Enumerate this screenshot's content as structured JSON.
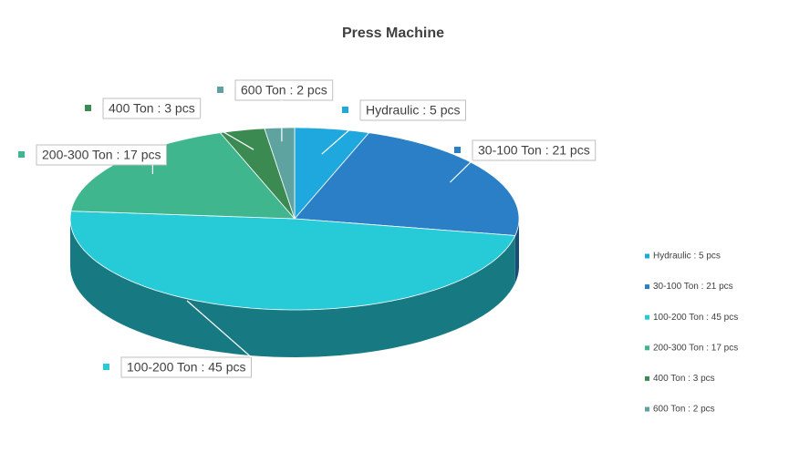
{
  "chart_data": {
    "type": "pie",
    "title": "Press Machine",
    "categories": [
      "Hydraulic : 5 pcs",
      "30-100 Ton : 21 pcs",
      "100-200 Ton : 45 pcs",
      "200-300 Ton : 17 pcs",
      "400 Ton : 3 pcs",
      "600 Ton : 2 pcs"
    ],
    "values": [
      5,
      21,
      45,
      17,
      3,
      2
    ],
    "colors": [
      "#1fa8dd",
      "#2a7fc6",
      "#27cad7",
      "#3fb68e",
      "#3b8a52",
      "#5fa3a0"
    ],
    "legend": "right"
  }
}
